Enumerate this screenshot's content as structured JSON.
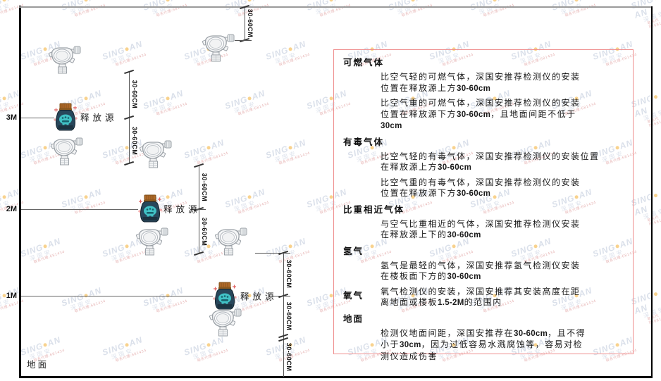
{
  "diagram": {
    "axis_labels": [
      "3M",
      "2M",
      "1M"
    ],
    "ground_label": "地面",
    "source_label": "释放源",
    "dim_label": "30-60CM"
  },
  "watermark": {
    "brand_left": "SING",
    "brand_right": "AN",
    "cn": "深国安",
    "sub": "联系代理:681434"
  },
  "panel": {
    "border_color": "#ef8f8f",
    "sections": [
      {
        "heading": "可燃气体",
        "inline": false,
        "paragraphs": [
          {
            "lines": [
              [
                {
                  "t": "比空气轻的可燃气体，深国安推荐检测仪的安装"
                }
              ],
              [
                {
                  "t": "位置在释放源上方"
                },
                {
                  "t": "30-60cm",
                  "b": true
                }
              ]
            ]
          },
          {
            "lines": [
              [
                {
                  "t": "比空气重的可燃气体，深国安推荐检测仪的安装"
                }
              ],
              [
                {
                  "t": "位置在释放源下方"
                },
                {
                  "t": "30-60cm",
                  "b": true
                },
                {
                  "t": "，且地面间距不低于"
                }
              ],
              [
                {
                  "t": "30cm",
                  "b": true
                }
              ]
            ]
          }
        ]
      },
      {
        "heading": "有毒气体",
        "inline": false,
        "paragraphs": [
          {
            "lines": [
              [
                {
                  "t": "比空气轻的有毒气体，深国安推荐检测仪的安装位置"
                }
              ],
              [
                {
                  "t": "在释放源上方"
                },
                {
                  "t": "30-60cm",
                  "b": true
                }
              ]
            ]
          },
          {
            "lines": [
              [
                {
                  "t": "比空气重的有毒气体，深国安推荐检测仪的安装"
                }
              ],
              [
                {
                  "t": "位置在释放源下方"
                },
                {
                  "t": "30-60cm",
                  "b": true
                }
              ]
            ]
          }
        ]
      },
      {
        "heading": "比重相近气体",
        "inline": false,
        "paragraphs": [
          {
            "lines": [
              [
                {
                  "t": "与空气比重相近的气体，深国安推荐检测仪安装"
                }
              ],
              [
                {
                  "t": "在释放源上下的"
                },
                {
                  "t": "30-60cm",
                  "b": true
                }
              ]
            ]
          }
        ]
      },
      {
        "heading": "氢气",
        "inline": false,
        "paragraphs": [
          {
            "lines": [
              [
                {
                  "t": "氢气是最轻的气体，深国安推荐氢气检测仪安装"
                }
              ],
              [
                {
                  "t": "在楼板面下方的"
                },
                {
                  "t": "30-60cm",
                  "b": true
                }
              ]
            ]
          }
        ]
      },
      {
        "heading": "氧气",
        "inline": true,
        "paragraphs": [
          {
            "lines": [
              [
                {
                  "t": "氧气检测仪的安装，深国安推荐其安装高度在距"
                }
              ],
              [
                {
                  "t": "离地面或楼板"
                },
                {
                  "t": "1.5-2M",
                  "b": true
                },
                {
                  "t": "的范围内"
                }
              ]
            ]
          }
        ]
      },
      {
        "heading": "地面",
        "inline": false,
        "paragraphs": [
          {
            "lines": [
              [
                {
                  "t": "检测仪地面间距，深国安推荐在"
                },
                {
                  "t": "30-60cm",
                  "b": true
                },
                {
                  "t": "，且不得"
                }
              ],
              [
                {
                  "t": "小于"
                },
                {
                  "t": "30cm",
                  "b": true
                },
                {
                  "t": "，因为过低容易水溅腐蚀等，容易对检"
                }
              ],
              [
                {
                  "t": "测仪造成伤害"
                }
              ]
            ]
          }
        ]
      }
    ]
  }
}
